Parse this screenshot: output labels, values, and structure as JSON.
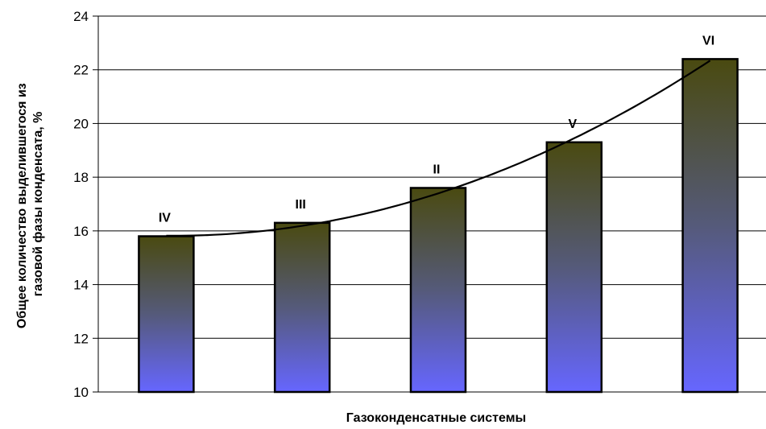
{
  "chart_data": {
    "type": "bar",
    "categories": [
      "IV",
      "III",
      "II",
      "V",
      "VI"
    ],
    "values": [
      15.8,
      16.3,
      17.6,
      19.3,
      22.4
    ],
    "ylim": [
      10,
      24
    ],
    "yticks": [
      10,
      12,
      14,
      16,
      18,
      20,
      22,
      24
    ],
    "xlabel": "Газоконденсатные системы",
    "ylabel_lines": [
      "Общее количество выделившегося из",
      "газовой фазы конденсата, %"
    ],
    "grid": true,
    "trendline": {
      "type": "polynomial",
      "x": [
        1,
        2,
        3,
        4,
        5
      ],
      "y": [
        15.8,
        16.2,
        17.5,
        19.3,
        22.4
      ]
    },
    "colors": {
      "bar_top": "#4a4a10",
      "bar_mid": "#555a7a",
      "bar_bottom": "#6666ff",
      "bar_border": "#000000",
      "trendline": "#000000",
      "grid": "#000000"
    }
  }
}
